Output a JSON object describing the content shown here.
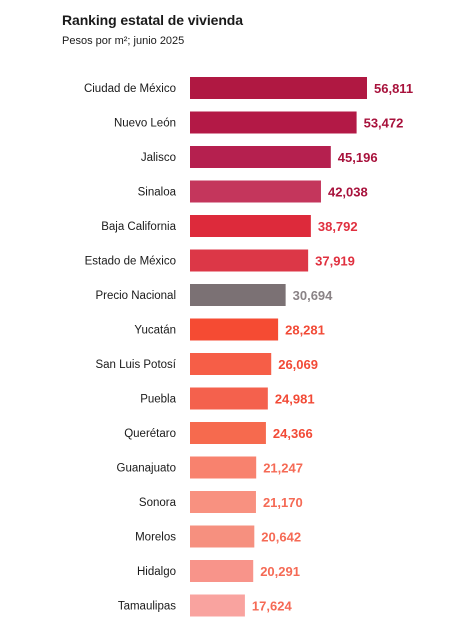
{
  "chart_data": {
    "type": "bar",
    "orientation": "horizontal",
    "title": "Ranking estatal de vivienda",
    "subtitle": "Pesos por m²; junio 2025",
    "categories": [
      "Ciudad de México",
      "Nuevo León",
      "Jalisco",
      "Sinaloa",
      "Baja California",
      "Estado de México",
      "Precio Nacional",
      "Yucatán",
      "San Luis Potosí",
      "Puebla",
      "Querétaro",
      "Guanajuato",
      "Sonora",
      "Morelos",
      "Hidalgo",
      "Tamaulipas"
    ],
    "values": [
      56811,
      53472,
      45196,
      42038,
      38792,
      37919,
      30694,
      28281,
      26069,
      24981,
      24366,
      21247,
      21170,
      20642,
      20291,
      17624
    ],
    "value_labels": [
      "56,811",
      "53,472",
      "45,196",
      "42,038",
      "38,792",
      "37,919",
      "30,694",
      "28,281",
      "26,069",
      "24,981",
      "24,366",
      "21,247",
      "21,170",
      "20,642",
      "20,291",
      "17,624"
    ],
    "bar_colors": [
      "#b01842",
      "#b31946",
      "#b5204f",
      "#c4365c",
      "#dd2a3b",
      "#dc3747",
      "#7b7174",
      "#f54b33",
      "#f65e47",
      "#f4614d",
      "#f66a4e",
      "#f8826e",
      "#f89180",
      "#f6907f",
      "#f8948a",
      "#f9a39f"
    ],
    "label_colors": [
      "#a8123c",
      "#a8123c",
      "#a8123c",
      "#a8123c",
      "#e0303f",
      "#e0303f",
      "#8a8386",
      "#f24a36",
      "#f24a36",
      "#f24a36",
      "#f24a36",
      "#f56a55",
      "#f56a55",
      "#f56a55",
      "#f56a55",
      "#f56a55"
    ],
    "xlim": [
      0,
      60000
    ],
    "grid": false,
    "legend": "none"
  }
}
